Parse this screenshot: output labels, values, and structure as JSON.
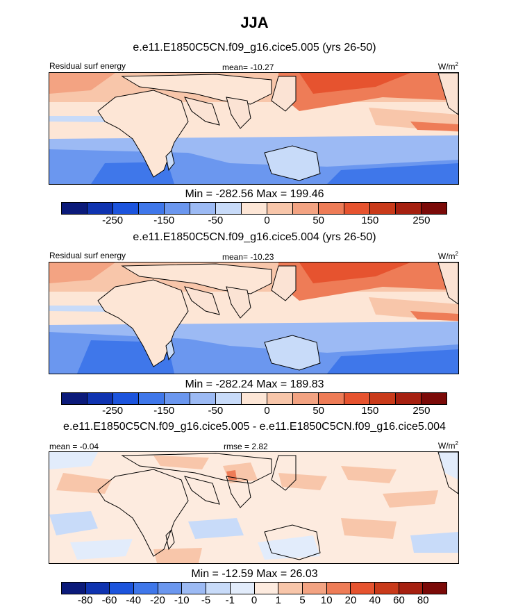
{
  "figure": {
    "title": "JJA"
  },
  "panels": [
    {
      "title": "e.e11.E1850C5CN.f09_g16.cice5.005 (yrs 26-50)",
      "left_label": "Residual surf energy",
      "center_label": "mean= -10.27",
      "unit": "W/m",
      "unit_sup": "2",
      "minmax": "Min = -282.56 Max = 199.46"
    },
    {
      "title": "e.e11.E1850C5CN.f09_g16.cice5.004 (yrs 26-50)",
      "left_label": "Residual surf energy",
      "center_label": "mean= -10.23",
      "unit": "W/m",
      "unit_sup": "2",
      "minmax": "Min = -282.24 Max = 189.83"
    },
    {
      "title": "e.e11.E1850C5CN.f09_g16.cice5.005 - e.e11.E1850C5CN.f09_g16.cice5.004",
      "left_label": "mean =  -0.04",
      "center_label": "rmse =   2.82",
      "unit": "W/m",
      "unit_sup": "2",
      "minmax": "Min = -12.59 Max =  26.03"
    }
  ],
  "colorbars": {
    "absolute": {
      "colors": [
        "#0b1a7a",
        "#0f33b0",
        "#1c54dd",
        "#3f77ea",
        "#6b97ef",
        "#9cbaf4",
        "#c8dbf9",
        "#fde6d6",
        "#f8c6aa",
        "#f3a382",
        "#ee7c57",
        "#e6532f",
        "#c93a1a",
        "#a62010",
        "#7b0a08"
      ],
      "tick_labels": [
        "-250",
        "-150",
        "-50",
        "0",
        "50",
        "150",
        "250"
      ]
    },
    "difference": {
      "colors": [
        "#0b1a7a",
        "#0f33b0",
        "#1c54dd",
        "#3f77ea",
        "#6b97ef",
        "#9cbaf4",
        "#c8dbf9",
        "#e2ecfb",
        "#fdebdf",
        "#f8c6aa",
        "#f3a382",
        "#ee7c57",
        "#e6532f",
        "#c93a1a",
        "#a62010",
        "#7b0a08"
      ],
      "tick_labels": [
        "-80",
        "-60",
        "-40",
        "-20",
        "-10",
        "-5",
        "-1",
        "0",
        "1",
        "5",
        "10",
        "20",
        "40",
        "60",
        "80"
      ]
    }
  }
}
